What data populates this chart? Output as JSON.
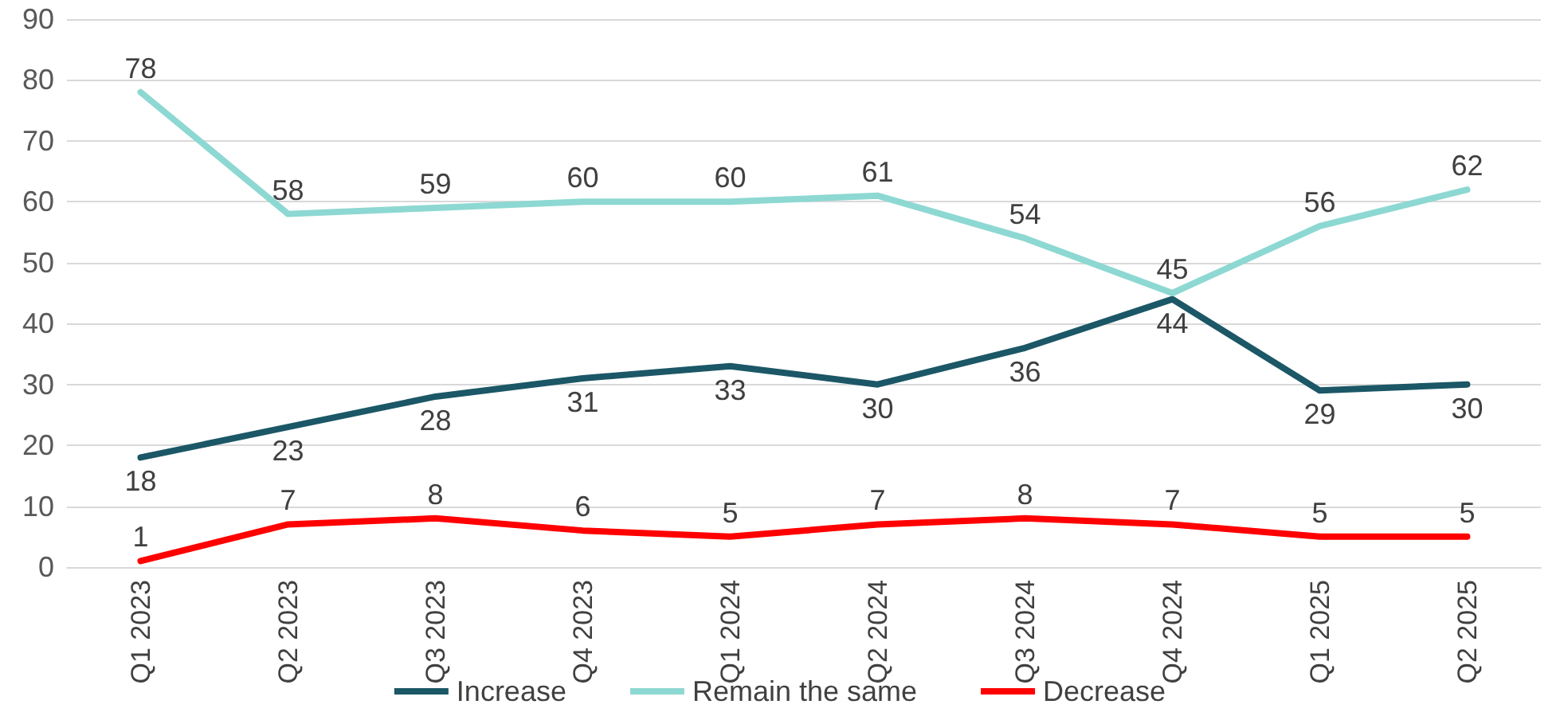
{
  "chart_data": {
    "type": "line",
    "categories": [
      "Q1 2023",
      "Q2 2023",
      "Q3 2023",
      "Q4 2023",
      "Q1 2024",
      "Q2 2024",
      "Q3 2024",
      "Q4 2024",
      "Q1 2025",
      "Q2 2025"
    ],
    "series": [
      {
        "name": "Increase",
        "color": "#1b5766",
        "values": [
          18,
          23,
          28,
          31,
          33,
          30,
          36,
          44,
          29,
          30
        ]
      },
      {
        "name": "Remain the same",
        "color": "#8dd8d2",
        "values": [
          78,
          58,
          59,
          60,
          60,
          61,
          54,
          45,
          56,
          62
        ]
      },
      {
        "name": "Decrease",
        "color": "#ff0000",
        "values": [
          1,
          7,
          8,
          6,
          5,
          7,
          8,
          7,
          5,
          5
        ]
      }
    ],
    "ylim": [
      0,
      90
    ],
    "yticks": [
      0,
      10,
      20,
      30,
      40,
      50,
      60,
      70,
      80,
      90
    ],
    "grid": "y",
    "legend": "bottom",
    "data_labels": true,
    "marker": "none",
    "line_style": "solid"
  }
}
